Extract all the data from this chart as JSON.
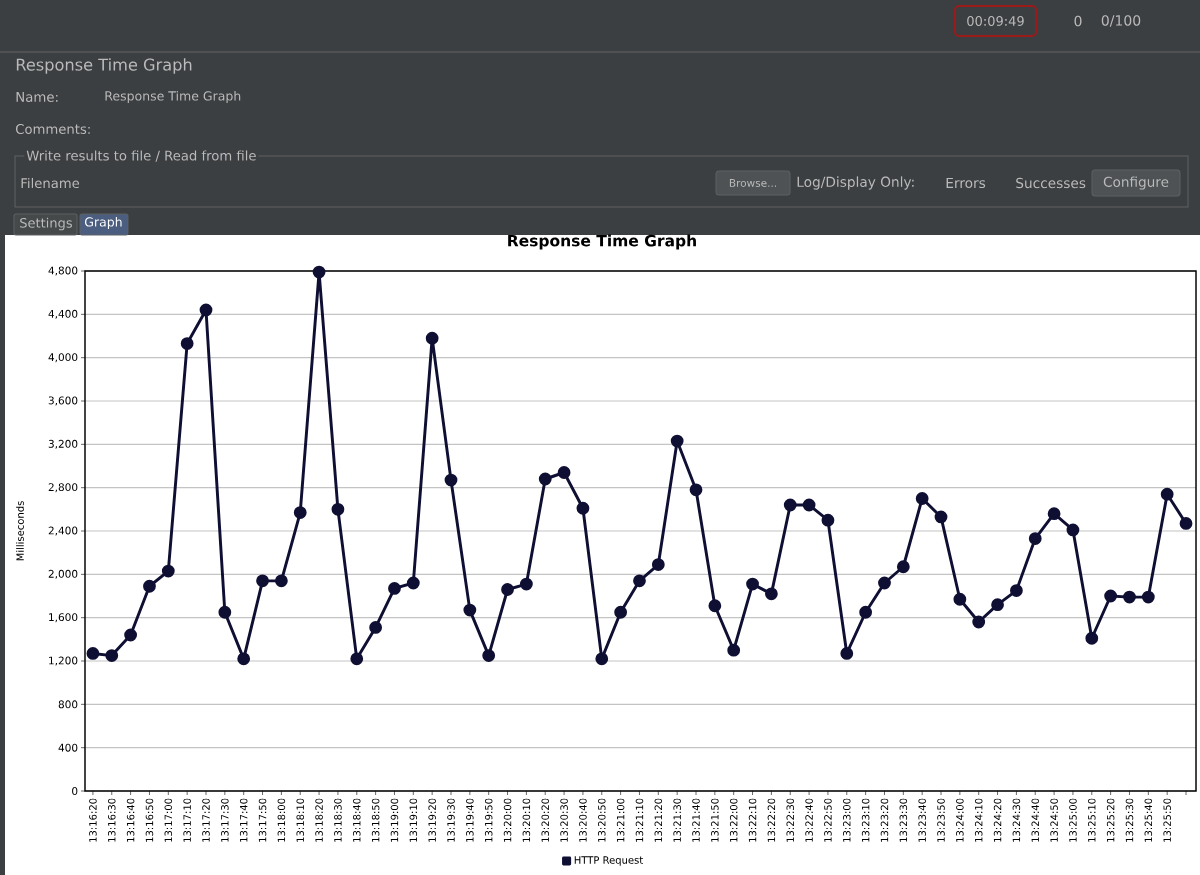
{
  "chart_data": {
    "type": "line",
    "title": "Response Time Graph",
    "ylabel": "Milliseconds",
    "categories": [
      "13:16:20",
      "13:16:30",
      "13:16:40",
      "13:16:50",
      "13:17:00",
      "13:17:10",
      "13:17:20",
      "13:17:30",
      "13:17:40",
      "13:17:50",
      "13:18:00",
      "13:18:10",
      "13:18:20",
      "13:18:30",
      "13:18:40",
      "13:18:50",
      "13:19:00",
      "13:19:10",
      "13:19:20",
      "13:19:30",
      "13:19:40",
      "13:19:50",
      "13:20:00",
      "13:20:10",
      "13:20:20",
      "13:20:30",
      "13:20:40",
      "13:20:50",
      "13:21:00",
      "13:21:10",
      "13:21:20",
      "13:21:30",
      "13:21:40",
      "13:21:50",
      "13:22:00",
      "13:22:10",
      "13:22:20",
      "13:22:30",
      "13:22:40",
      "13:22:50",
      "13:23:00",
      "13:23:10",
      "13:23:20",
      "13:23:30",
      "13:23:40",
      "13:23:50",
      "13:24:00",
      "13:24:10",
      "13:24:20",
      "13:24:30",
      "13:24:40",
      "13:24:50",
      "13:25:00",
      "13:25:10",
      "13:25:20",
      "13:25:30",
      "13:25:40",
      "13:25:50",
      null
    ],
    "series": [
      {
        "name": "HTTP Request",
        "color": "#0f0f33",
        "values": [
          1270,
          1250,
          1440,
          1890,
          2030,
          4130,
          4440,
          1650,
          1220,
          1940,
          1940,
          2570,
          4790,
          2600,
          1220,
          1510,
          1870,
          1920,
          4180,
          2870,
          1670,
          1250,
          1860,
          1910,
          2880,
          2940,
          2610,
          1220,
          1650,
          1940,
          2090,
          3230,
          2780,
          1710,
          1300,
          1910,
          1820,
          2640,
          2640,
          2500,
          1270,
          1650,
          1920,
          2070,
          2700,
          2530,
          1770,
          1560,
          1720,
          1850,
          2330,
          2560,
          2410,
          1410,
          1800,
          1790,
          1790,
          2740,
          2470
        ]
      }
    ],
    "ylim": [
      0,
      4800
    ],
    "yticks": [
      0,
      400,
      800,
      {
        "value": 1200,
        "label": "1,200"
      },
      {
        "value": 1600,
        "label": "1,600"
      },
      {
        "value": 2000,
        "label": "2,000"
      },
      {
        "value": 2400,
        "label": "2,400"
      },
      {
        "value": 2800,
        "label": "2,800"
      },
      {
        "value": 3200,
        "label": "3,200"
      },
      {
        "value": 3600,
        "label": "3,600"
      },
      {
        "value": 4000,
        "label": "4,000"
      },
      {
        "value": 4400,
        "label": "4,400"
      },
      {
        "value": 4800,
        "label": "4,800"
      }
    ],
    "grid": "y",
    "legend": "bottom",
    "marker": "circle",
    "line_style": "solid",
    "annotations": [
      "00:09:49",
      "0",
      "0/100",
      "Response Time Graph",
      "Name:",
      "Response Time Graph",
      "Comments:",
      "Write results to file / Read from file",
      "Filename",
      "Browse...",
      "Log/Display Only:",
      "Errors",
      "Successes",
      "Configure",
      "Settings",
      "Graph"
    ]
  }
}
